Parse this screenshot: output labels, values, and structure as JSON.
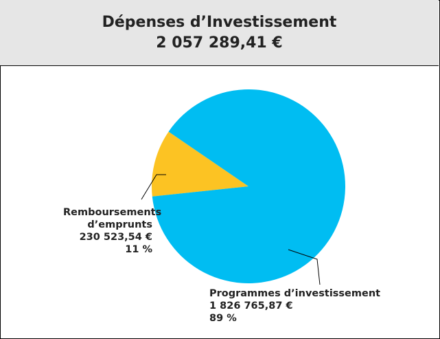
{
  "chart_data": {
    "type": "pie",
    "title": "Dépenses d’Investissement",
    "subtitle": "2 057 289,41 €",
    "categories": [
      "Remboursements d’emprunts",
      "Programmes d’investissement"
    ],
    "values": [
      230523.54,
      1826765.87
    ],
    "value_labels": [
      "230 523,54 €",
      "1 826 765,87 €"
    ],
    "percentages": [
      11,
      89
    ],
    "percentage_labels": [
      "11 %",
      "89 %"
    ],
    "colors": [
      "#fcc323",
      "#00bdf2"
    ]
  }
}
